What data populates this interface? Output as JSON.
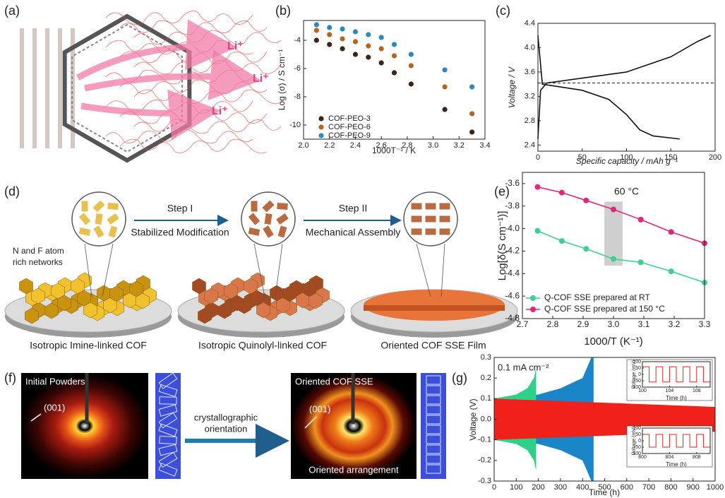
{
  "panel_labels": [
    "(a)",
    "(b)",
    "(c)",
    "(d)",
    "(e)",
    "(f)",
    "(g)"
  ],
  "panel_a": {
    "ion_labels": [
      "Li⁺",
      "Li⁺",
      "Li⁺"
    ]
  },
  "panel_d": {
    "steps": [
      "Step I",
      "Step II"
    ],
    "step_captions": [
      "Stabilized Modification",
      "Mechanical Assembly"
    ],
    "note": [
      "N and F atom",
      "rich networks"
    ],
    "stages": [
      "Isotropic Imine-linked COF",
      "Isotropic Quinolyl-linked COF",
      "Oriented COF SSE Film"
    ]
  },
  "panel_f": {
    "left_title": "Initial Powders",
    "left_peak": "(001)",
    "arrow_label": [
      "crystallographic",
      "orientation"
    ],
    "right_title": "Oriented COF SSE",
    "right_peak": "(001)",
    "right_caption": "Oriented arrangement"
  },
  "chart_data": [
    {
      "type": "scatter",
      "xlabel": "1000T⁻¹ / K",
      "ylabel": "Log (σ) / S cm⁻¹",
      "x": [
        2.1,
        2.2,
        2.3,
        2.4,
        2.5,
        2.6,
        2.7,
        2.83,
        3.09,
        3.3
      ],
      "series": [
        {
          "name": "COF-PEO-3",
          "color": "#3b2418",
          "values": [
            -4.0,
            -4.3,
            -4.6,
            -5.0,
            -5.2,
            -5.6,
            -6.3,
            -7.1,
            -8.9,
            -10.5
          ]
        },
        {
          "name": "COF-PEO-6",
          "color": "#b5651d",
          "values": [
            -3.3,
            -3.6,
            -3.9,
            -4.1,
            -4.4,
            -4.6,
            -5.1,
            -5.8,
            -7.3,
            -9.2
          ]
        },
        {
          "name": "COF-PEO-9",
          "color": "#2a8ab8",
          "values": [
            -2.9,
            -3.1,
            -3.2,
            -3.4,
            -3.6,
            -3.8,
            -4.3,
            -5.0,
            -6.1,
            -7.3
          ]
        }
      ],
      "xlim": [
        2.0,
        3.4
      ],
      "xticks": [
        {
          "value": 2,
          "label": "2.0"
        },
        2.2,
        2.4,
        2.6,
        2.8,
        {
          "value": 3,
          "label": "3.0"
        },
        3.2,
        3.4
      ],
      "ylim": [
        -11,
        -2.6
      ],
      "yticks": [
        -4,
        -6,
        -8,
        -10
      ],
      "legend": "lower-left"
    },
    {
      "type": "line",
      "xlabel": "Specific capacity / mAh g⁻¹",
      "ylabel": "Voltage / V",
      "series": [
        {
          "color": "#111111",
          "x": [
            0,
            3,
            10,
            50,
            100,
            150,
            180,
            195
          ],
          "values": [
            2.5,
            3.3,
            3.42,
            3.5,
            3.6,
            3.85,
            4.1,
            4.2
          ]
        },
        {
          "color": "#111111",
          "x": [
            0,
            5,
            50,
            80,
            100,
            115,
            130,
            160
          ],
          "values": [
            4.2,
            3.4,
            3.3,
            3.15,
            2.9,
            2.65,
            2.55,
            2.5
          ]
        }
      ],
      "reference_line": 3.42,
      "xlim": [
        0,
        200
      ],
      "xticks": [
        0,
        50,
        100,
        150,
        200
      ],
      "ylim": [
        2.3,
        4.4
      ],
      "yticks": [
        2.4,
        2.8,
        3.2,
        3.6,
        {
          "value": 4,
          "label": "4.0"
        },
        4.4
      ]
    },
    {
      "type": "line",
      "markers": true,
      "xlabel": "1000/T (K⁻¹)",
      "ylabel": "Log[δ(S cm⁻¹)]",
      "annotation": "60 °C",
      "x": [
        2.75,
        2.83,
        2.91,
        3.0,
        3.09,
        3.19,
        3.3
      ],
      "series": [
        {
          "name": "Q-COF SSE prepared at RT",
          "color": "#3fcf8e",
          "values": [
            -4.02,
            -4.11,
            -4.18,
            -4.27,
            -4.3,
            -4.38,
            -4.48
          ]
        },
        {
          "name": "Q-COF SSE prepared at 150 °C",
          "color": "#e0287a",
          "values": [
            -3.63,
            -3.68,
            -3.75,
            -3.83,
            -3.92,
            -4.03,
            -4.13
          ]
        }
      ],
      "xlim": [
        2.7,
        3.3
      ],
      "xticks": [
        2.7,
        2.8,
        2.9,
        {
          "value": 3,
          "label": "3.0"
        },
        3.1,
        3.2,
        3.3
      ],
      "ylim": [
        -4.8,
        -3.5
      ],
      "yticks": [
        -3.6,
        -3.8,
        {
          "value": -4,
          "label": "-4.0"
        },
        -4.2,
        -4.4,
        -4.6,
        -4.8
      ],
      "legend": "lower-left"
    },
    {
      "type": "area",
      "xlabel": "Time (h)",
      "ylabel": "Voltage (V)",
      "annotation": "0.1 mA cm⁻²",
      "series": [
        {
          "color": "#1a86c8",
          "x": [
            0,
            200,
            300,
            400,
            440,
            450
          ],
          "values": [
            0.1,
            0.12,
            0.15,
            0.2,
            0.3,
            0.3
          ],
          "lower": [
            -0.1,
            -0.12,
            -0.15,
            -0.2,
            -0.3,
            -0.3
          ]
        },
        {
          "color": "#2fd08a",
          "x": [
            0,
            100,
            150,
            180,
            190
          ],
          "values": [
            0.1,
            0.12,
            0.15,
            0.2,
            0.25
          ],
          "lower": [
            -0.1,
            -0.12,
            -0.15,
            -0.2,
            -0.25
          ]
        },
        {
          "color": "#f0201a",
          "x": [
            0,
            1000
          ],
          "values": [
            0.1,
            0.06
          ],
          "lower": [
            -0.1,
            -0.06
          ]
        }
      ],
      "xlim": [
        0,
        1000
      ],
      "xticks": [
        0,
        100,
        200,
        300,
        400,
        500,
        600,
        700,
        800,
        900,
        1000
      ],
      "ylim": [
        -0.3,
        0.3
      ],
      "yticks": [
        0.3,
        0.2,
        0.1,
        {
          "value": 0,
          "label": "0.0"
        },
        -0.1,
        -0.2,
        -0.3
      ]
    },
    {
      "type": "line",
      "xlabel": "Time (h)",
      "ylabel": "Voltage (mV)",
      "series": [
        {
          "color": "#e8201a",
          "x": [
            100,
            101,
            101,
            102,
            102,
            103,
            103,
            104,
            104,
            105,
            105,
            106,
            106,
            107,
            107,
            108,
            108,
            109,
            109,
            110
          ],
          "values": [
            60,
            60,
            -60,
            -60,
            60,
            60,
            -60,
            -60,
            60,
            60,
            -60,
            -60,
            60,
            60,
            -60,
            -60,
            60,
            60,
            -60,
            -60
          ]
        }
      ],
      "xlim": [
        100,
        110
      ],
      "xticks": [
        100,
        104,
        108
      ],
      "ylim": [
        -100,
        100
      ],
      "yticks": [
        100,
        50,
        0,
        -50,
        -100
      ]
    },
    {
      "type": "line",
      "xlabel": "Time (h)",
      "ylabel": "Voltage (mV)",
      "series": [
        {
          "color": "#e8201a",
          "x": [
            800,
            801,
            801,
            802,
            802,
            803,
            803,
            804,
            804,
            805,
            805,
            806,
            806,
            807,
            807,
            808,
            808,
            809,
            809,
            810
          ],
          "values": [
            50,
            50,
            -50,
            -50,
            50,
            50,
            -50,
            -50,
            50,
            50,
            -50,
            -50,
            50,
            50,
            -50,
            -50,
            50,
            50,
            -50,
            -50
          ]
        }
      ],
      "xlim": [
        800,
        810
      ],
      "xticks": [
        800,
        804,
        808
      ],
      "ylim": [
        -100,
        100
      ],
      "yticks": [
        100,
        50,
        0,
        -50,
        -100
      ]
    }
  ]
}
